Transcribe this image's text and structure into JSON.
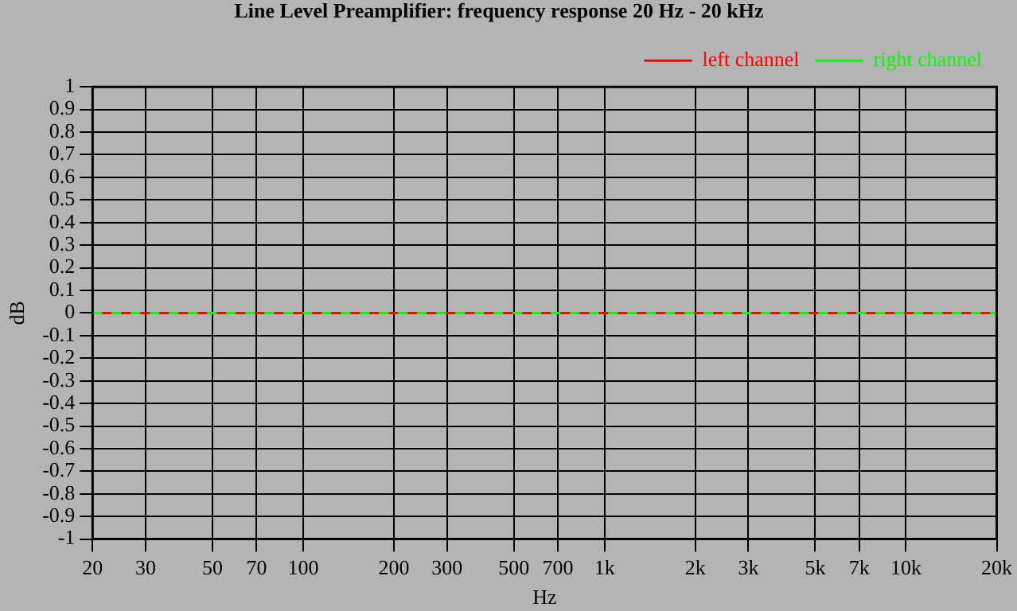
{
  "chart_data": {
    "type": "line",
    "title": "Line Level Preamplifier: frequency response 20 Hz - 20 kHz",
    "xlabel": "Hz",
    "ylabel": "dB",
    "x": [
      20,
      20000
    ],
    "series": [
      {
        "name": "left channel",
        "color": "#ff0000",
        "values": [
          0,
          0
        ],
        "line_style": "solid"
      },
      {
        "name": "right channel",
        "color": "#00ff00",
        "values": [
          0,
          0
        ],
        "line_style": "dashed"
      }
    ],
    "log": "x",
    "xlim": [
      20,
      20000
    ],
    "xticks": [
      20,
      30,
      50,
      70,
      100,
      200,
      300,
      500,
      700,
      {
        "value": 1000,
        "label": "1k"
      },
      {
        "value": 2000,
        "label": "2k"
      },
      {
        "value": 3000,
        "label": "3k"
      },
      {
        "value": 5000,
        "label": "5k"
      },
      {
        "value": 7000,
        "label": "7k"
      },
      {
        "value": 10000,
        "label": "10k"
      },
      {
        "value": 20000,
        "label": "20k"
      }
    ],
    "ylim": [
      -1,
      1
    ],
    "yticks": [
      -1,
      -0.9,
      -0.8,
      -0.7,
      -0.6,
      -0.5,
      -0.4,
      -0.3,
      -0.2,
      -0.1,
      0,
      0.1,
      0.2,
      0.3,
      0.4,
      0.5,
      0.6,
      0.7,
      0.8,
      0.9,
      1
    ],
    "grid": true,
    "legend": "top right",
    "marker": "none"
  }
}
